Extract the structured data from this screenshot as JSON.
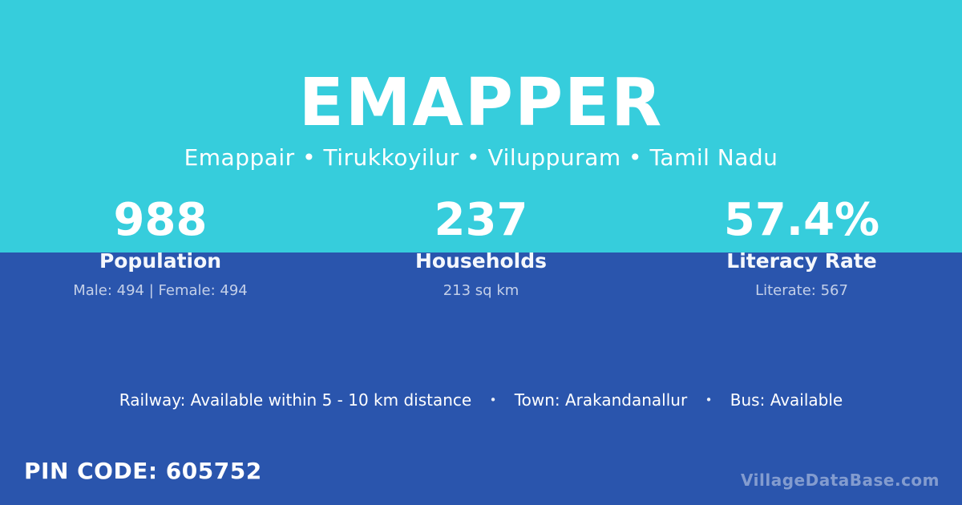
{
  "colors": {
    "top_background": "#36CDDC",
    "bottom_background": "#2A55AD",
    "text_primary": "#FFFFFF",
    "text_muted": "rgba(255,255,255,0.72)",
    "watermark": "rgba(255,255,255,0.42)"
  },
  "header": {
    "title": "EMAPPER",
    "subtitle": "Emappair • Tirukkoyilur • Viluppuram • Tamil Nadu"
  },
  "stats": [
    {
      "value": "988",
      "label": "Population",
      "detail": "Male: 494 | Female: 494"
    },
    {
      "value": "237",
      "label": "Households",
      "detail": "213 sq km"
    },
    {
      "value": "57.4%",
      "label": "Literacy Rate",
      "detail": "Literate: 567"
    }
  ],
  "info": {
    "separator": "•",
    "segments": [
      "Railway: Available within 5 - 10 km distance",
      "Town: Arakandanallur",
      "Bus: Available"
    ]
  },
  "footer": {
    "pin_code": "PIN CODE: 605752",
    "watermark": "VillageDataBase.com"
  }
}
